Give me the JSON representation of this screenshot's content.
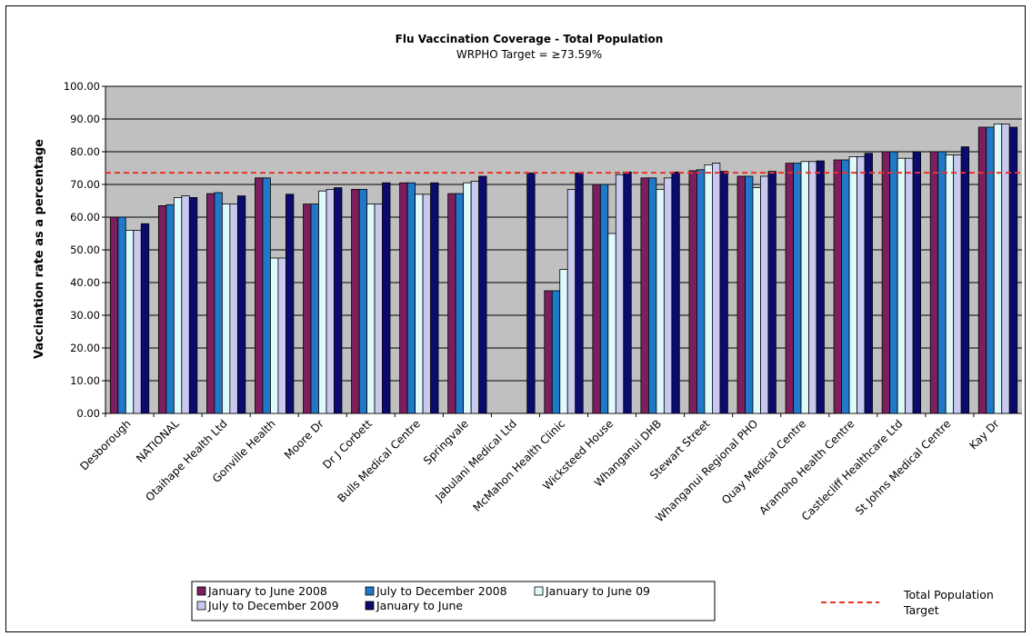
{
  "chart_data": {
    "type": "bar",
    "title": "Flu Vaccination Coverage - Total Population",
    "subtitle": "WRPHO Target = ≥73.59%",
    "xlabel": "",
    "ylabel": "Vaccination rate as a percentage",
    "ylim": [
      0,
      100
    ],
    "yticks": [
      "0.00",
      "10.00",
      "20.00",
      "30.00",
      "40.00",
      "50.00",
      "60.00",
      "70.00",
      "80.00",
      "90.00",
      "100.00"
    ],
    "grid": true,
    "plot_background": "#c0c0c0",
    "categories": [
      "Desborough",
      "NATIONAL",
      "Otaihape Health Ltd",
      "Gonville Health",
      "Moore Dr",
      "Dr J Corbett",
      "Bulls Medical Centre",
      "Springvale",
      "Jabulani Medical Ltd",
      "McMahon Health Clinic",
      "Wicksteed House",
      "Whanganui DHB",
      "Stewart Street",
      "Whanganui Regional PHO",
      "Quay Medical Centre",
      "Aramoho Health Centre",
      "Castlecliff Healthcare Ltd",
      "St Johns Medical Centre",
      "Kay Dr"
    ],
    "series": [
      {
        "name": "January to June 2008",
        "color": "#7b1f5e",
        "values": [
          60.0,
          63.5,
          67.2,
          72.0,
          64.0,
          68.5,
          70.5,
          67.2,
          null,
          37.5,
          70.0,
          72.0,
          74.2,
          72.5,
          76.5,
          77.5,
          80.0,
          80.0,
          87.5
        ]
      },
      {
        "name": "July to December 2008",
        "color": "#1f78c8",
        "values": [
          60.0,
          63.8,
          67.5,
          72.0,
          64.0,
          68.5,
          70.5,
          67.2,
          null,
          37.5,
          70.0,
          72.0,
          74.5,
          72.5,
          76.5,
          77.5,
          80.0,
          80.0,
          87.5
        ]
      },
      {
        "name": "January to June 09",
        "color": "#dffafa",
        "values": [
          56.0,
          66.0,
          64.0,
          47.5,
          68.0,
          64.0,
          67.0,
          70.5,
          null,
          44.0,
          55.0,
          68.5,
          76.0,
          69.0,
          77.0,
          78.5,
          78.0,
          79.0,
          88.5
        ]
      },
      {
        "name": "July to December 2009",
        "color": "#c9c9ef",
        "values": [
          56.0,
          66.5,
          64.0,
          47.5,
          68.5,
          64.0,
          67.0,
          71.0,
          null,
          68.5,
          73.0,
          72.0,
          76.5,
          72.5,
          77.0,
          78.5,
          78.0,
          79.0,
          88.5
        ]
      },
      {
        "name": "January to June",
        "color": "#0b0b6e",
        "values": [
          58.0,
          66.0,
          66.5,
          67.0,
          69.0,
          70.5,
          70.5,
          72.5,
          73.5,
          73.5,
          73.8,
          73.8,
          74.0,
          74.0,
          77.2,
          79.5,
          80.0,
          81.5,
          87.5
        ]
      }
    ],
    "target": {
      "name": "Total Population Target",
      "value": 73.59,
      "color": "#e8342a"
    },
    "legend_position": "bottom"
  }
}
